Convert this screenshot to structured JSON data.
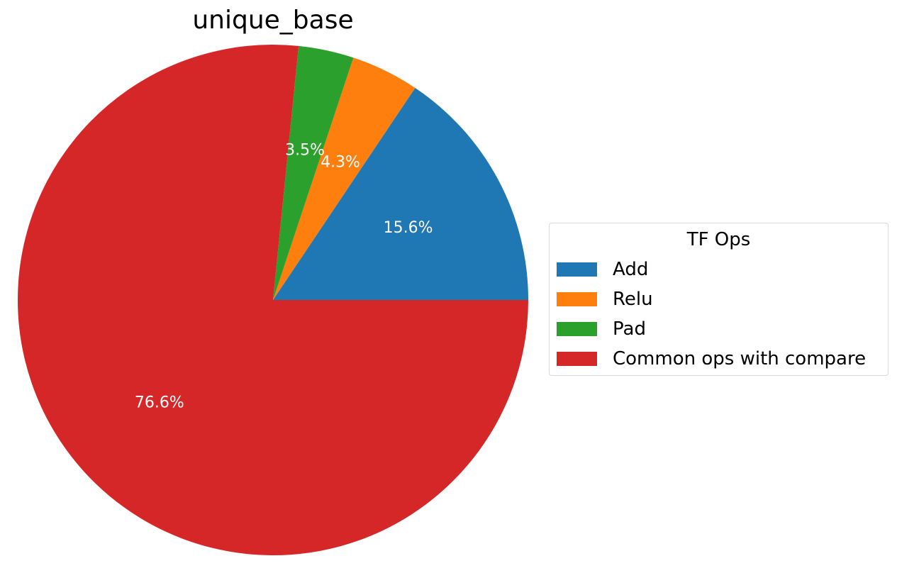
{
  "chart_data": {
    "type": "pie",
    "title": "unique_base",
    "start_angle_deg": 0,
    "direction": "counterclockwise",
    "slices": [
      {
        "name": "Add",
        "value": 15.6,
        "label": "15.6%",
        "color": "#1f77b4"
      },
      {
        "name": "Relu",
        "value": 4.3,
        "label": "4.3%",
        "color": "#ff7f0e"
      },
      {
        "name": "Pad",
        "value": 3.5,
        "label": "3.5%",
        "color": "#2ca02c"
      },
      {
        "name": "Common ops with compare",
        "value": 76.6,
        "label": "76.6%",
        "color": "#d62728"
      }
    ],
    "legend": {
      "title": "TF Ops",
      "placement": "center-right"
    }
  }
}
